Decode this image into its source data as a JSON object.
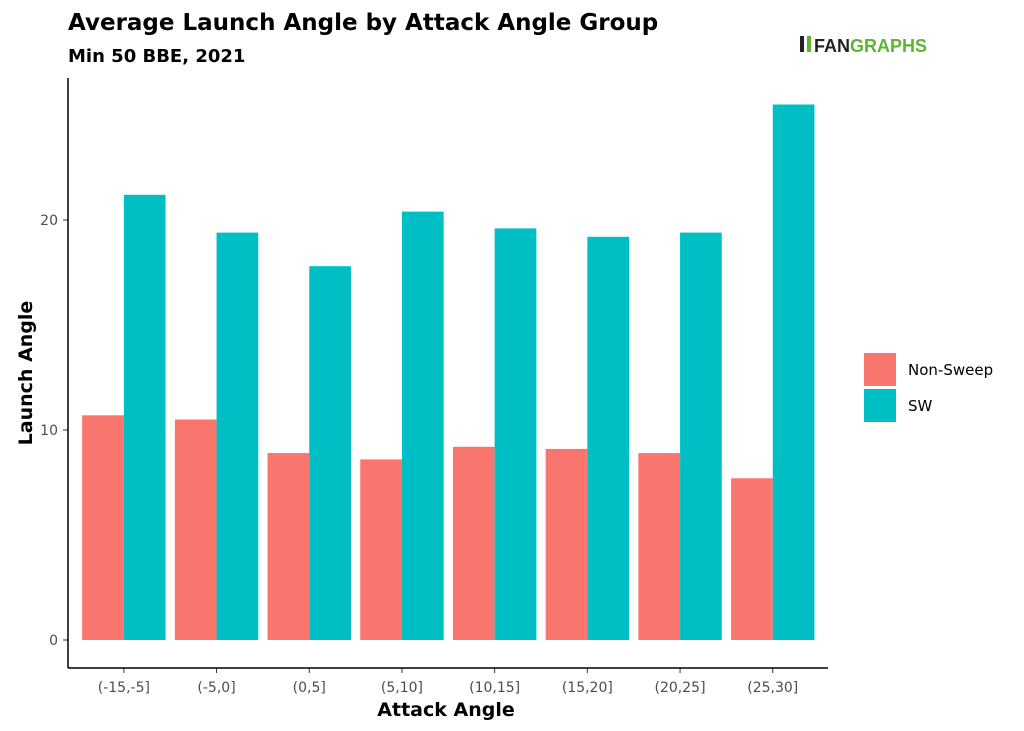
{
  "chart_data": {
    "type": "bar",
    "title": "Average Launch Angle by Attack Angle Group",
    "subtitle": "Min 50 BBE, 2021",
    "xlabel": "Attack Angle",
    "ylabel": "Launch Angle",
    "categories": [
      "(-15,-5]",
      "(-5,0]",
      "(0,5]",
      "(5,10]",
      "(10,15]",
      "(15,20]",
      "(20,25]",
      "(25,30]"
    ],
    "series": [
      {
        "name": "Non-Sweep",
        "color": "#F8766D",
        "values": [
          10.7,
          10.5,
          8.9,
          8.6,
          9.2,
          9.1,
          8.9,
          7.7
        ]
      },
      {
        "name": "SW",
        "color": "#00BFC4",
        "values": [
          21.2,
          19.4,
          17.8,
          20.4,
          19.6,
          19.2,
          19.4,
          25.5
        ]
      }
    ],
    "yticks": [
      0,
      10,
      20
    ],
    "ylim": [
      0,
      26.7
    ],
    "grid": false,
    "legend_position": "right",
    "logo": "FANGRAPHS"
  }
}
